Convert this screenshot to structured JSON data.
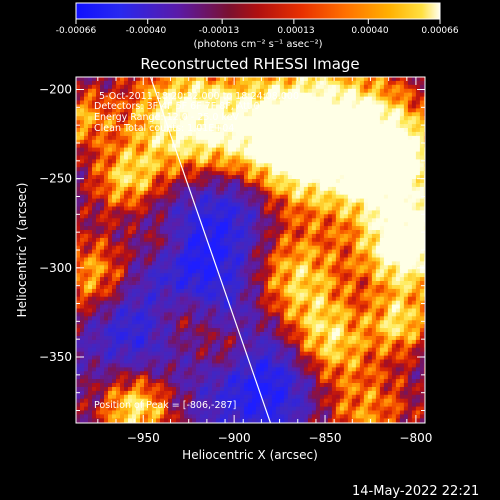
{
  "colorbar": {
    "ticks": [
      "-0.00066",
      "-0.00040",
      "-0.00013",
      "0.00013",
      "0.00040",
      "0.00066"
    ],
    "tick_values": [
      -0.00066,
      -0.0004,
      -0.00013,
      0.00013,
      0.0004,
      0.00066
    ],
    "range": [
      -0.00066,
      0.00066
    ],
    "unit_label": "(photons cm⁻² s⁻¹ asec⁻²)"
  },
  "title": "Reconstructed RHESSI Image",
  "annotations": {
    "time_range": "5-Oct-2011 18:20:32.000 to 18:24:08.000",
    "detectors": "Detectors: 3F 4F 5F 6F 7F 8F, Att 0",
    "energy": "Energy Range: 12.0 - 25.0 keV",
    "clean": "Clean    Total counts: 1.01E+04",
    "peak": "Position of Peak = [-806,-287]"
  },
  "footer": {
    "timestamp": "14-May-2022 22:21"
  },
  "colors": {
    "background": "#000000",
    "frame": "#ffffff",
    "limb": "#ffffff"
  },
  "chart_data": {
    "type": "heatmap",
    "title": "Reconstructed RHESSI Image",
    "xlabel": "Heliocentric X (arcsec)",
    "ylabel": "Heliocentric Y (arcsec)",
    "xlim": [
      -987,
      -795
    ],
    "ylim": [
      -387,
      -193
    ],
    "x_ticks": [
      -950,
      -900,
      -850,
      -800
    ],
    "y_ticks": [
      -200,
      -250,
      -300,
      -350
    ],
    "x_tick_labels": [
      "−950",
      "−900",
      "−850",
      "−800"
    ],
    "y_tick_labels": [
      "−200",
      "−250",
      "−300",
      "−350"
    ],
    "colormap": "blue-purple-red-yellow-white",
    "value_range": [
      -0.00066,
      0.00066
    ],
    "peak_position": [
      -806,
      -287
    ],
    "limb_line": {
      "x": [
        -946,
        -880
      ],
      "y": [
        -193,
        -387
      ]
    },
    "grid": false
  }
}
